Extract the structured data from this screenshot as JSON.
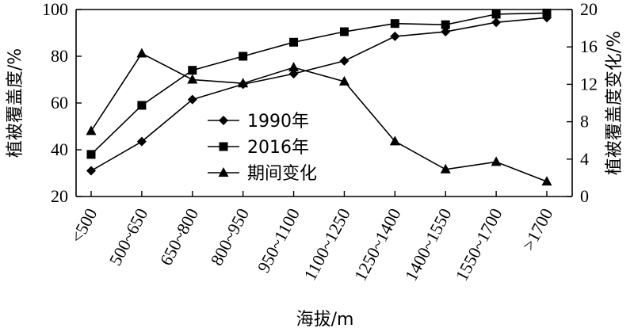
{
  "chart_data": {
    "type": "line",
    "categories": [
      "<500",
      "500~650",
      "650~800",
      "800~950",
      "950~1100",
      "1100~1250",
      "1250~1400",
      "1400~1550",
      "1550~1700",
      ">1700"
    ],
    "xlabel": "海拔/m",
    "ylabel_left": "植被覆盖度/%",
    "ylabel_right": "植被覆盖度变化/%",
    "ylim_left": [
      20,
      100
    ],
    "yticks_left": [
      20,
      40,
      60,
      80,
      100
    ],
    "ylim_right": [
      0,
      20
    ],
    "yticks_right": [
      0,
      4,
      8,
      12,
      16,
      20
    ],
    "legend_position": "center",
    "grid": false,
    "series": [
      {
        "name": "1990年",
        "axis": "left",
        "marker": "diamond",
        "values": [
          31,
          43.5,
          61.5,
          68,
          72.5,
          78,
          88.5,
          90.5,
          94.5,
          96.5
        ]
      },
      {
        "name": "2016年",
        "axis": "left",
        "marker": "square",
        "values": [
          38,
          59,
          74,
          80,
          86,
          90.5,
          94,
          93.5,
          98,
          98.5
        ]
      },
      {
        "name": "期间变化",
        "axis": "right",
        "marker": "triangle",
        "values": [
          7,
          15.3,
          12.5,
          12.1,
          13.8,
          12.3,
          5.9,
          2.9,
          3.7,
          1.6
        ]
      }
    ]
  }
}
